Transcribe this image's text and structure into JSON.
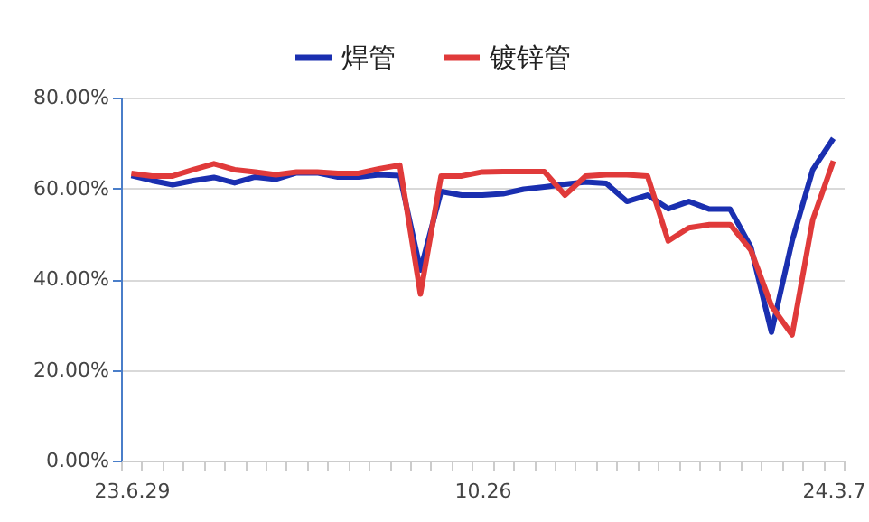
{
  "chart_data": {
    "type": "line",
    "categories": [
      "23.6.29",
      null,
      null,
      null,
      null,
      null,
      null,
      null,
      null,
      null,
      null,
      null,
      null,
      null,
      null,
      null,
      null,
      "10.26",
      null,
      null,
      null,
      null,
      null,
      null,
      null,
      null,
      null,
      null,
      null,
      null,
      null,
      null,
      null,
      null,
      "24.3.7"
    ],
    "series": [
      {
        "name": "焊管",
        "color": "#1a2fb0",
        "values": [
          62.8,
          61.7,
          60.8,
          61.7,
          62.4,
          61.2,
          62.5,
          62.0,
          63.4,
          63.4,
          62.5,
          62.5,
          63.0,
          62.8,
          42.0,
          59.3,
          58.5,
          58.5,
          58.8,
          59.8,
          60.3,
          60.9,
          61.4,
          61.1,
          57.1,
          58.5,
          55.5,
          57.1,
          55.4,
          55.4,
          47.1,
          28.3,
          48.4,
          64.1,
          71.0
        ]
      },
      {
        "name": "镀锌管",
        "color": "#e03a3a",
        "values": [
          63.3,
          62.7,
          62.7,
          64.1,
          65.4,
          64.1,
          63.6,
          63.0,
          63.6,
          63.6,
          63.3,
          63.3,
          64.3,
          65.1,
          36.7,
          62.7,
          62.7,
          63.6,
          63.7,
          63.7,
          63.7,
          58.5,
          62.7,
          63.0,
          63.0,
          62.7,
          48.4,
          51.3,
          52.0,
          52.0,
          46.4,
          34.1,
          27.7,
          53.1,
          66.0
        ]
      }
    ],
    "ylim": [
      0,
      80
    ],
    "yticks": [
      {
        "value": 0,
        "label": "0.00%"
      },
      {
        "value": 20,
        "label": "20.00%"
      },
      {
        "value": 40,
        "label": "40.00%"
      },
      {
        "value": 60,
        "label": "60.00%"
      },
      {
        "value": 80,
        "label": "80.00%"
      }
    ],
    "grid": "y",
    "legend": "top",
    "line_style": "solid",
    "marker": "none"
  }
}
